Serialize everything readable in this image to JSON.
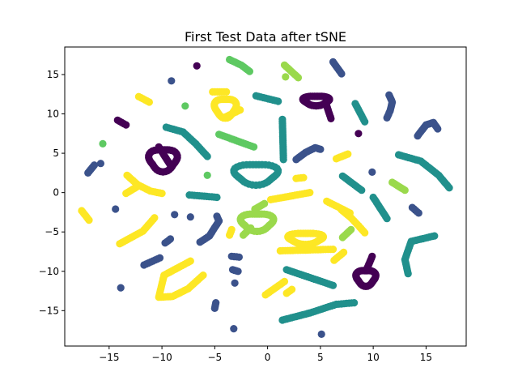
{
  "chart_data": {
    "type": "scatter",
    "title": "First Test Data after tSNE",
    "xlabel": "",
    "ylabel": "",
    "xlim": [
      -19.2,
      18.8
    ],
    "ylim": [
      -19.5,
      18.5
    ],
    "xticks": [
      -15,
      -10,
      -5,
      0,
      5,
      10,
      15
    ],
    "yticks": [
      -15,
      -10,
      -5,
      0,
      5,
      10,
      15
    ],
    "xtick_labels": [
      "−15",
      "−10",
      "−5",
      "0",
      "5",
      "10",
      "15"
    ],
    "ytick_labels": [
      "−15",
      "−10",
      "−5",
      "0",
      "5",
      "10",
      "15"
    ],
    "grid": false,
    "legend": "none",
    "palette": {
      "purple": "#440154",
      "indigo": "#3b528b",
      "teal": "#21908c",
      "green": "#5ec962",
      "lime": "#9ad94c",
      "yellow": "#fde725"
    },
    "clusters": [
      {
        "color": "purple",
        "kind": "loop",
        "cx": -9.9,
        "cy": 4.2,
        "rx": 1.3,
        "ry": 1.4
      },
      {
        "color": "purple",
        "kind": "line",
        "from": [
          -10.3,
          5.8
        ],
        "to": [
          -9.2,
          3.5
        ]
      },
      {
        "color": "purple",
        "kind": "line",
        "from": [
          -14.2,
          9.2
        ],
        "to": [
          -13.4,
          8.6
        ]
      },
      {
        "color": "purple",
        "kind": "dot",
        "at": [
          -6.7,
          16.1
        ]
      },
      {
        "color": "purple",
        "kind": "loop",
        "cx": 4.6,
        "cy": 11.7,
        "rx": 1.2,
        "ry": 0.6
      },
      {
        "color": "purple",
        "kind": "line",
        "from": [
          5.6,
          11.0
        ],
        "to": [
          6.0,
          9.4
        ]
      },
      {
        "color": "purple",
        "kind": "dot",
        "at": [
          8.6,
          7.5
        ]
      },
      {
        "color": "purple",
        "kind": "loop",
        "cx": 9.3,
        "cy": -10.8,
        "rx": 0.9,
        "ry": 1.0
      },
      {
        "color": "purple",
        "kind": "line",
        "from": [
          9.4,
          -9.7
        ],
        "to": [
          9.9,
          -8.1
        ]
      },
      {
        "color": "indigo",
        "kind": "line",
        "from": [
          -17.0,
          2.5
        ],
        "to": [
          -16.4,
          3.5
        ]
      },
      {
        "color": "indigo",
        "kind": "dot",
        "at": [
          -15.8,
          3.7
        ]
      },
      {
        "color": "indigo",
        "kind": "dot",
        "at": [
          -14.4,
          -2.1
        ]
      },
      {
        "color": "indigo",
        "kind": "dot",
        "at": [
          -13.9,
          -12.1
        ]
      },
      {
        "color": "indigo",
        "kind": "line",
        "from": [
          -11.7,
          -9.2
        ],
        "to": [
          -10.2,
          -8.3
        ]
      },
      {
        "color": "indigo",
        "kind": "line",
        "from": [
          -9.7,
          -6.4
        ],
        "to": [
          -9.2,
          -5.9
        ]
      },
      {
        "color": "indigo",
        "kind": "dot",
        "at": [
          -8.8,
          -2.8
        ]
      },
      {
        "color": "indigo",
        "kind": "dot",
        "at": [
          -9.1,
          14.2
        ]
      },
      {
        "color": "indigo",
        "kind": "dot",
        "at": [
          -7.3,
          -3.1
        ]
      },
      {
        "color": "indigo",
        "kind": "curve",
        "points": [
          [
            -6.4,
            -6.3
          ],
          [
            -5.5,
            -5.5
          ],
          [
            -4.6,
            -3.6
          ],
          [
            -4.8,
            -3.0
          ]
        ]
      },
      {
        "color": "indigo",
        "kind": "line",
        "from": [
          -3.4,
          -8.1
        ],
        "to": [
          -2.7,
          -8.2
        ]
      },
      {
        "color": "indigo",
        "kind": "line",
        "from": [
          -3.3,
          -9.8
        ],
        "to": [
          -2.8,
          -10.0
        ]
      },
      {
        "color": "indigo",
        "kind": "dot",
        "at": [
          -3.1,
          -11.5
        ]
      },
      {
        "color": "indigo",
        "kind": "line",
        "from": [
          -5.0,
          -14.7
        ],
        "to": [
          -4.9,
          -14.0
        ]
      },
      {
        "color": "indigo",
        "kind": "dot",
        "at": [
          -3.2,
          -17.3
        ]
      },
      {
        "color": "indigo",
        "kind": "curve",
        "points": [
          [
            2.7,
            4.2
          ],
          [
            3.6,
            5.1
          ],
          [
            4.5,
            5.7
          ],
          [
            5.0,
            5.5
          ]
        ]
      },
      {
        "color": "indigo",
        "kind": "line",
        "from": [
          6.2,
          16.6
        ],
        "to": [
          7.0,
          15.1
        ]
      },
      {
        "color": "indigo",
        "kind": "dot",
        "at": [
          9.9,
          2.6
        ]
      },
      {
        "color": "indigo",
        "kind": "curve",
        "points": [
          [
            11.5,
            12.4
          ],
          [
            11.8,
            11.5
          ],
          [
            11.6,
            10.4
          ],
          [
            11.3,
            9.5
          ]
        ]
      },
      {
        "color": "indigo",
        "kind": "curve",
        "points": [
          [
            14.2,
            7.2
          ],
          [
            15.0,
            8.6
          ],
          [
            15.7,
            8.9
          ],
          [
            16.1,
            8.1
          ]
        ]
      },
      {
        "color": "indigo",
        "kind": "line",
        "from": [
          13.7,
          -1.9
        ],
        "to": [
          14.3,
          -2.6
        ]
      },
      {
        "color": "indigo",
        "kind": "dot",
        "at": [
          5.1,
          -18.0
        ]
      },
      {
        "color": "teal",
        "kind": "curve",
        "points": [
          [
            -9.6,
            8.3
          ],
          [
            -8.0,
            7.7
          ],
          [
            -6.8,
            6.2
          ],
          [
            -5.7,
            4.6
          ]
        ]
      },
      {
        "color": "teal",
        "kind": "line",
        "from": [
          -7.4,
          -0.3
        ],
        "to": [
          -4.8,
          -0.6
        ]
      },
      {
        "color": "teal",
        "kind": "loop",
        "cx": -1.1,
        "cy": 2.4,
        "rx": 2.0,
        "ry": 1.3
      },
      {
        "color": "teal",
        "kind": "line",
        "from": [
          -1.1,
          12.3
        ],
        "to": [
          1.0,
          11.6
        ]
      },
      {
        "color": "teal",
        "kind": "line",
        "from": [
          1.4,
          9.3
        ],
        "to": [
          1.5,
          4.2
        ]
      },
      {
        "color": "teal",
        "kind": "line",
        "from": [
          1.8,
          -9.8
        ],
        "to": [
          6.2,
          -11.8
        ]
      },
      {
        "color": "teal",
        "kind": "curve",
        "points": [
          [
            1.4,
            -16.2
          ],
          [
            4.0,
            -15.3
          ],
          [
            6.5,
            -14.2
          ],
          [
            8.2,
            -14.0
          ]
        ]
      },
      {
        "color": "teal",
        "kind": "line",
        "from": [
          8.3,
          11.3
        ],
        "to": [
          9.2,
          9.0
        ]
      },
      {
        "color": "teal",
        "kind": "line",
        "from": [
          7.1,
          2.1
        ],
        "to": [
          8.9,
          0.3
        ]
      },
      {
        "color": "teal",
        "kind": "line",
        "from": [
          10.0,
          -0.6
        ],
        "to": [
          11.3,
          -3.3
        ]
      },
      {
        "color": "teal",
        "kind": "curve",
        "points": [
          [
            12.4,
            4.8
          ],
          [
            14.5,
            4.0
          ],
          [
            16.2,
            2.2
          ],
          [
            17.2,
            0.6
          ]
        ]
      },
      {
        "color": "teal",
        "kind": "curve",
        "points": [
          [
            13.3,
            -10.3
          ],
          [
            13.0,
            -8.5
          ],
          [
            13.6,
            -6.2
          ],
          [
            15.8,
            -5.5
          ]
        ]
      },
      {
        "color": "green",
        "kind": "dot",
        "at": [
          -15.6,
          6.2
        ]
      },
      {
        "color": "green",
        "kind": "dot",
        "at": [
          -7.8,
          11.0
        ]
      },
      {
        "color": "green",
        "kind": "dot",
        "at": [
          -5.7,
          2.2
        ]
      },
      {
        "color": "green",
        "kind": "curve",
        "points": [
          [
            -3.6,
            16.9
          ],
          [
            -2.5,
            16.2
          ],
          [
            -1.7,
            15.4
          ]
        ]
      },
      {
        "color": "green",
        "kind": "line",
        "from": [
          -4.6,
          7.4
        ],
        "to": [
          -1.3,
          5.8
        ]
      },
      {
        "color": "lime",
        "kind": "loop",
        "cx": -1.0,
        "cy": -3.7,
        "rx": 1.5,
        "ry": 1.1
      },
      {
        "color": "lime",
        "kind": "line",
        "from": [
          -2.3,
          -5.4
        ],
        "to": [
          -1.6,
          -4.5
        ]
      },
      {
        "color": "lime",
        "kind": "line",
        "from": [
          1.6,
          16.2
        ],
        "to": [
          2.9,
          14.6
        ]
      },
      {
        "color": "lime",
        "kind": "dot",
        "at": [
          1.7,
          14.7
        ]
      },
      {
        "color": "lime",
        "kind": "line",
        "from": [
          11.8,
          1.3
        ],
        "to": [
          13.0,
          0.3
        ]
      },
      {
        "color": "lime",
        "kind": "line",
        "from": [
          7.9,
          -4.7
        ],
        "to": [
          7.1,
          -5.7
        ]
      },
      {
        "color": "lime",
        "kind": "line",
        "from": [
          -0.3,
          -1.4
        ],
        "to": [
          -1.2,
          -2.1
        ]
      },
      {
        "color": "yellow",
        "kind": "line",
        "from": [
          -17.6,
          -2.3
        ],
        "to": [
          -16.9,
          -3.5
        ]
      },
      {
        "color": "yellow",
        "kind": "curve",
        "points": [
          [
            -13.3,
            2.2
          ],
          [
            -12.3,
            1.0
          ],
          [
            -11.1,
            0.2
          ],
          [
            -10.0,
            -0.1
          ]
        ]
      },
      {
        "color": "yellow",
        "kind": "line",
        "from": [
          -13.4,
          -0.1
        ],
        "to": [
          -12.4,
          0.7
        ]
      },
      {
        "color": "yellow",
        "kind": "line",
        "from": [
          -12.2,
          12.2
        ],
        "to": [
          -11.2,
          11.5
        ]
      },
      {
        "color": "yellow",
        "kind": "curve",
        "points": [
          [
            -14.0,
            -6.5
          ],
          [
            -12.9,
            -5.7
          ],
          [
            -11.8,
            -4.9
          ],
          [
            -10.7,
            -3.2
          ]
        ]
      },
      {
        "color": "yellow",
        "kind": "curve",
        "points": [
          [
            -7.3,
            -8.7
          ],
          [
            -9.8,
            -10.5
          ],
          [
            -10.3,
            -13.3
          ],
          [
            -9.0,
            -13.2
          ],
          [
            -7.5,
            -12.2
          ],
          [
            -6.1,
            -10.5
          ]
        ]
      },
      {
        "color": "yellow",
        "kind": "loop",
        "cx": -4.0,
        "cy": 10.8,
        "rx": 1.0,
        "ry": 1.2
      },
      {
        "color": "yellow",
        "kind": "line",
        "from": [
          -5.2,
          12.8
        ],
        "to": [
          -3.9,
          12.8
        ]
      },
      {
        "color": "yellow",
        "kind": "line",
        "from": [
          -4.0,
          9.6
        ],
        "to": [
          -2.6,
          10.5
        ]
      },
      {
        "color": "yellow",
        "kind": "line",
        "from": [
          -3.6,
          -5.4
        ],
        "to": [
          -3.4,
          -4.7
        ]
      },
      {
        "color": "yellow",
        "kind": "line",
        "from": [
          -0.2,
          -13.0
        ],
        "to": [
          1.6,
          -11.3
        ]
      },
      {
        "color": "yellow",
        "kind": "line",
        "from": [
          0.3,
          -0.9
        ],
        "to": [
          4.0,
          0.0
        ]
      },
      {
        "color": "yellow",
        "kind": "line",
        "from": [
          2.7,
          1.8
        ],
        "to": [
          3.4,
          1.9
        ]
      },
      {
        "color": "yellow",
        "kind": "loop",
        "cx": 3.6,
        "cy": -5.8,
        "rx": 1.6,
        "ry": 0.7
      },
      {
        "color": "yellow",
        "kind": "line",
        "from": [
          1.2,
          -7.4
        ],
        "to": [
          6.2,
          -7.2
        ]
      },
      {
        "color": "yellow",
        "kind": "line",
        "from": [
          5.6,
          -1.1
        ],
        "to": [
          7.8,
          -2.6
        ]
      },
      {
        "color": "yellow",
        "kind": "curve",
        "points": [
          [
            7.0,
            -2.2
          ],
          [
            7.9,
            -3.2
          ],
          [
            8.6,
            -4.2
          ],
          [
            9.2,
            -5.1
          ]
        ]
      },
      {
        "color": "yellow",
        "kind": "line",
        "from": [
          6.5,
          4.3
        ],
        "to": [
          7.6,
          4.9
        ]
      },
      {
        "color": "yellow",
        "kind": "line",
        "from": [
          6.3,
          -8.6
        ],
        "to": [
          7.2,
          -7.6
        ]
      },
      {
        "color": "yellow",
        "kind": "line",
        "from": [
          1.8,
          -12.8
        ],
        "to": [
          2.3,
          -12.3
        ]
      }
    ]
  }
}
